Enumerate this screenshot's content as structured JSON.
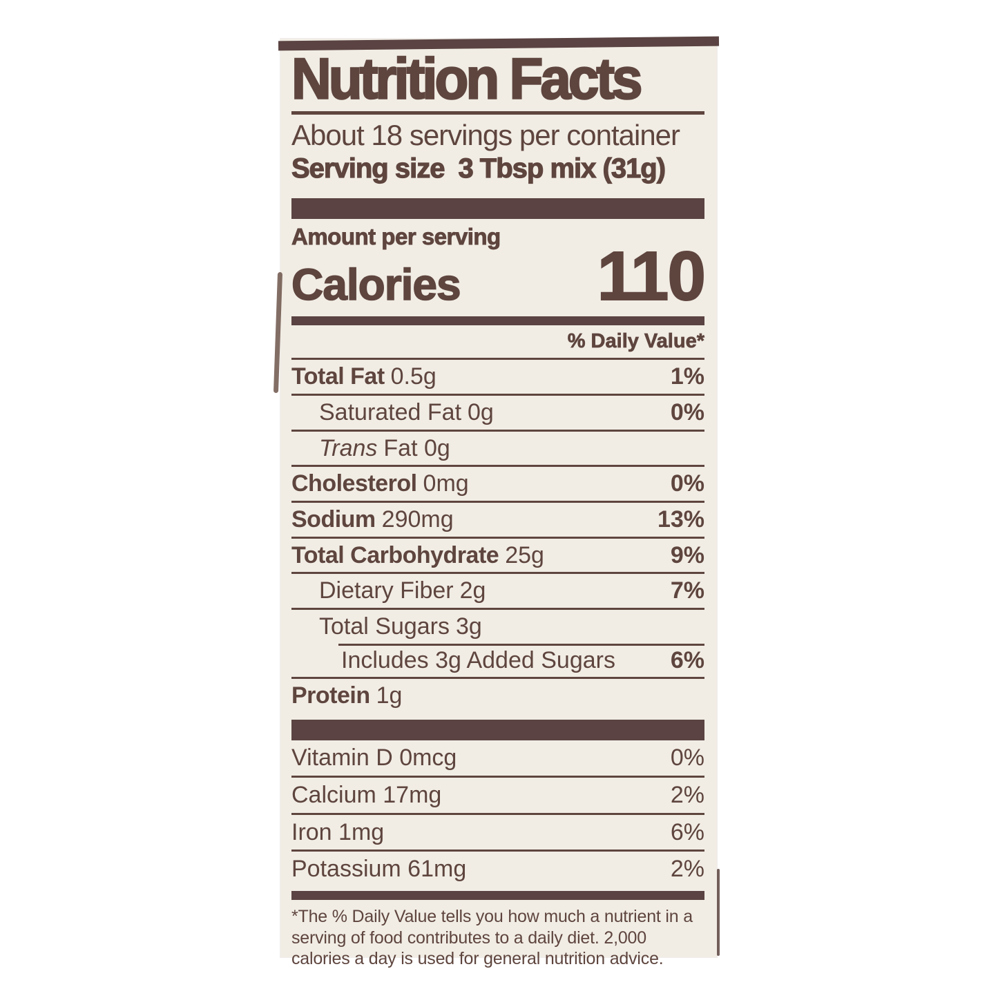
{
  "label": {
    "title": "Nutrition Facts",
    "servings_per_container": "About 18 servings per container",
    "serving_size_label": "Serving size",
    "serving_size_value": "3 Tbsp mix (31g)",
    "amount_per_serving": "Amount per serving",
    "calories_label": "Calories",
    "calories_value": "110",
    "daily_value_header": "% Daily Value*",
    "rows": [
      {
        "name_bold": "Total Fat",
        "amount": "0.5g",
        "dv": "1%"
      },
      {
        "name": "Saturated Fat",
        "amount": "0g",
        "dv": "0%"
      },
      {
        "name_italic": "Trans",
        "amount": "Fat 0g"
      },
      {
        "name_bold": "Cholesterol",
        "amount": "0mg",
        "dv": "0%"
      },
      {
        "name_bold": "Sodium",
        "amount": "290mg",
        "dv": "13%"
      },
      {
        "name_bold": "Total Carbohydrate",
        "amount": "25g",
        "dv": "9%"
      },
      {
        "name": "Dietary Fiber",
        "amount": "2g",
        "dv": "7%"
      },
      {
        "name": "Total Sugars",
        "amount": "3g"
      },
      {
        "name": "Includes 3g Added Sugars",
        "dv": "6%"
      },
      {
        "name_bold": "Protein",
        "amount": "1g"
      }
    ],
    "micronutrients": [
      {
        "name": "Vitamin D 0mcg",
        "dv": "0%"
      },
      {
        "name": "Calcium 17mg",
        "dv": "2%"
      },
      {
        "name": "Iron 1mg",
        "dv": "6%"
      },
      {
        "name": "Potassium 61mg",
        "dv": "2%"
      }
    ],
    "footnote": "*The % Daily Value tells you how much a nutrient in a serving of food contributes to a daily diet. 2,000 calories a day is used for general nutrition advice.",
    "colors": {
      "ink": "#5e453e",
      "bar": "#5a4342",
      "label_bg": "#f1ede5",
      "page_bg": "#ffffff"
    }
  }
}
